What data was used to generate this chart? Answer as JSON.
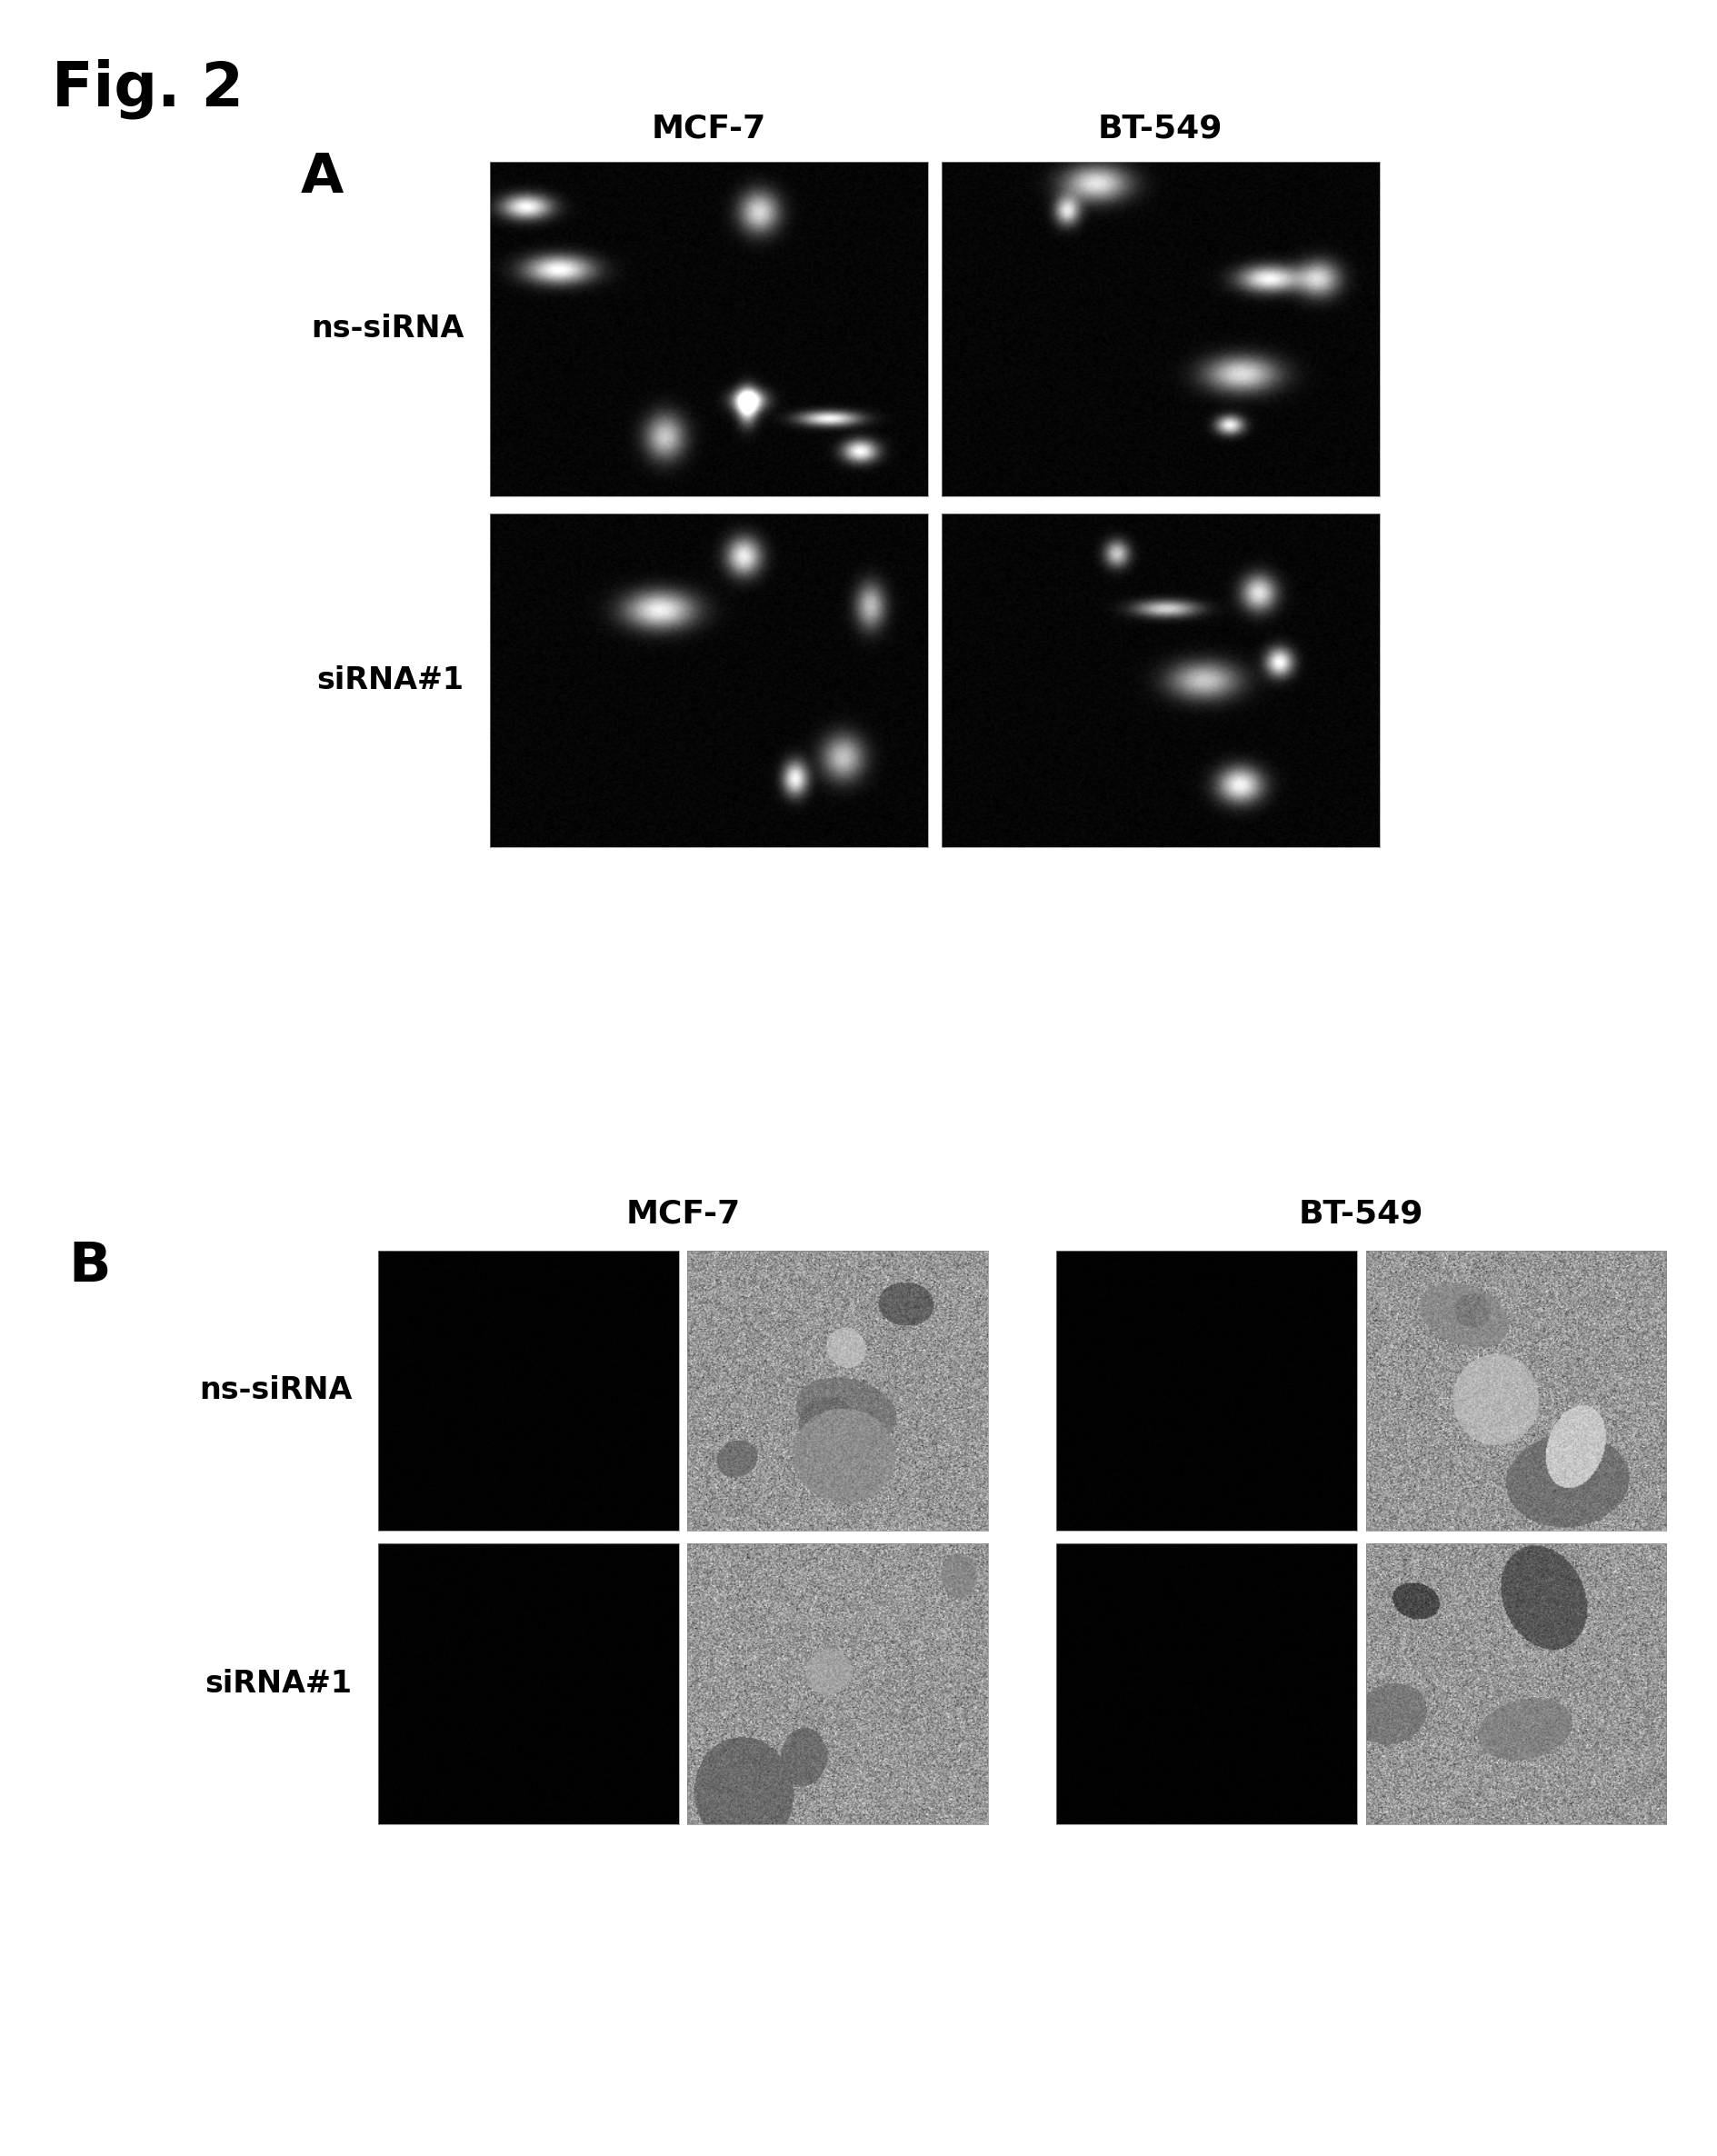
{
  "fig_label": "Fig. 2",
  "panel_A_label": "A",
  "panel_B_label": "B",
  "col_labels_A": [
    "MCF-7",
    "BT-549"
  ],
  "col_labels_B": [
    "MCF-7",
    "BT-549"
  ],
  "row_labels_A": [
    "ns-siRNA",
    "siRNA#1"
  ],
  "row_labels_B": [
    "ns-siRNA",
    "siRNA#1"
  ],
  "background_color": "#ffffff",
  "fig_label_fontsize": 48,
  "panel_label_fontsize": 44,
  "col_label_fontsize": 26,
  "row_label_fontsize": 24
}
